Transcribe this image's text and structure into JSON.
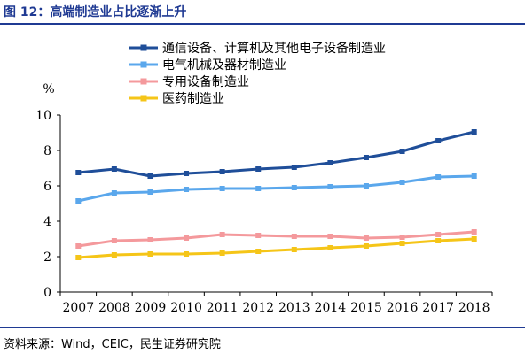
{
  "figure": {
    "title": "图 12：高端制造业占比逐渐上升",
    "source": "资料来源：Wind，CEIC，民生证券研究院"
  },
  "chart_data": {
    "type": "line",
    "x": [
      2007,
      2008,
      2009,
      2010,
      2011,
      2012,
      2013,
      2014,
      2015,
      2016,
      2017,
      2018
    ],
    "ylabel": "%",
    "ylim": [
      0,
      10
    ],
    "yticks": [
      0,
      2,
      4,
      6,
      8,
      10
    ],
    "grid": false,
    "legend_position": "top-left",
    "series": [
      {
        "name": "通信设备、计算机及其他电子设备制造业",
        "color": "#1f4e99",
        "values": [
          6.75,
          6.95,
          6.55,
          6.7,
          6.8,
          6.95,
          7.05,
          7.3,
          7.6,
          7.95,
          8.55,
          9.05
        ]
      },
      {
        "name": "电气机械及器材制造业",
        "color": "#5aa7ec",
        "values": [
          5.15,
          5.6,
          5.65,
          5.8,
          5.85,
          5.85,
          5.9,
          5.95,
          6.0,
          6.2,
          6.5,
          6.55
        ]
      },
      {
        "name": "专用设备制造业",
        "color": "#f4999c",
        "values": [
          2.6,
          2.9,
          2.95,
          3.05,
          3.25,
          3.2,
          3.15,
          3.15,
          3.05,
          3.1,
          3.25,
          3.4
        ]
      },
      {
        "name": "医药制造业",
        "color": "#f5c518",
        "values": [
          1.95,
          2.1,
          2.15,
          2.15,
          2.2,
          2.3,
          2.4,
          2.5,
          2.6,
          2.75,
          2.9,
          3.0
        ]
      }
    ]
  }
}
